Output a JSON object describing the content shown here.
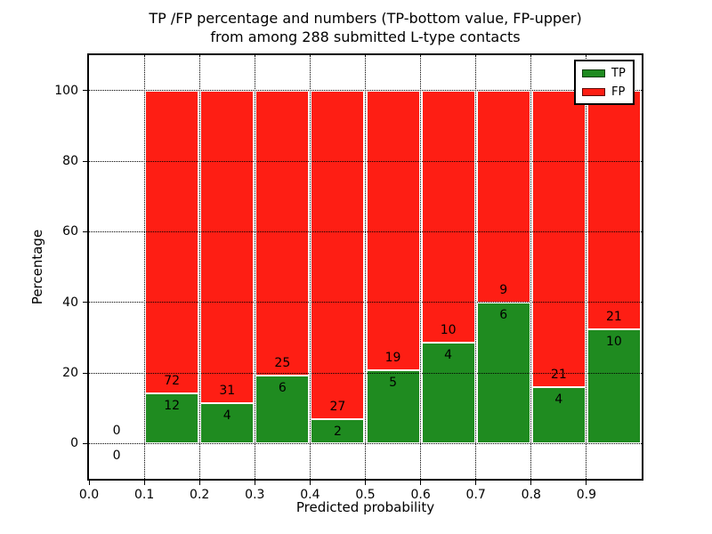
{
  "figure": {
    "title_line1": "TP /FP percentage and numbers (TP-bottom value, FP-upper)",
    "title_line2": "from among 288 submitted L-type contacts",
    "xlabel": "Predicted probability",
    "ylabel": "Percentage"
  },
  "chart_data": {
    "type": "bar",
    "stacked": true,
    "title": "TP /FP percentage and numbers (TP-bottom value, FP-upper) from among 288 submitted L-type contacts",
    "xlabel": "Predicted probability",
    "ylabel": "Percentage",
    "xlim": [
      0.0,
      1.0
    ],
    "ylim": [
      -10,
      110
    ],
    "grid": true,
    "grid_style": "dotted",
    "legend_position": "upper right",
    "total_submitted": 288,
    "bin_width": 0.1,
    "x_tick_values": [
      0.0,
      0.1,
      0.2,
      0.3,
      0.4,
      0.5,
      0.6,
      0.7,
      0.8,
      0.9
    ],
    "x_tick_labels": [
      "0.0",
      "0.1",
      "0.2",
      "0.3",
      "0.4",
      "0.5",
      "0.6",
      "0.7",
      "0.8",
      "0.9"
    ],
    "y_tick_values": [
      0,
      20,
      40,
      60,
      80,
      100
    ],
    "y_tick_labels": [
      "0",
      "20",
      "40",
      "60",
      "80",
      "100"
    ],
    "bins": [
      {
        "start": 0.0,
        "end": 0.1,
        "tp": 0,
        "fp": 0,
        "tp_pct": 0
      },
      {
        "start": 0.1,
        "end": 0.2,
        "tp": 12,
        "fp": 72,
        "tp_pct": 14.3
      },
      {
        "start": 0.2,
        "end": 0.3,
        "tp": 4,
        "fp": 31,
        "tp_pct": 11.4
      },
      {
        "start": 0.3,
        "end": 0.4,
        "tp": 6,
        "fp": 25,
        "tp_pct": 19.4
      },
      {
        "start": 0.4,
        "end": 0.5,
        "tp": 2,
        "fp": 27,
        "tp_pct": 6.9
      },
      {
        "start": 0.5,
        "end": 0.6,
        "tp": 5,
        "fp": 19,
        "tp_pct": 20.8
      },
      {
        "start": 0.6,
        "end": 0.7,
        "tp": 4,
        "fp": 10,
        "tp_pct": 28.6
      },
      {
        "start": 0.7,
        "end": 0.8,
        "tp": 6,
        "fp": 9,
        "tp_pct": 40.0
      },
      {
        "start": 0.8,
        "end": 0.9,
        "tp": 4,
        "fp": 21,
        "tp_pct": 16.0
      },
      {
        "start": 0.9,
        "end": 1.0,
        "tp": 10,
        "fp": 21,
        "tp_pct": 32.3
      }
    ],
    "legend": [
      {
        "label": "TP",
        "color": "#1f8b20"
      },
      {
        "label": "FP",
        "color": "#fe1e14"
      }
    ]
  }
}
